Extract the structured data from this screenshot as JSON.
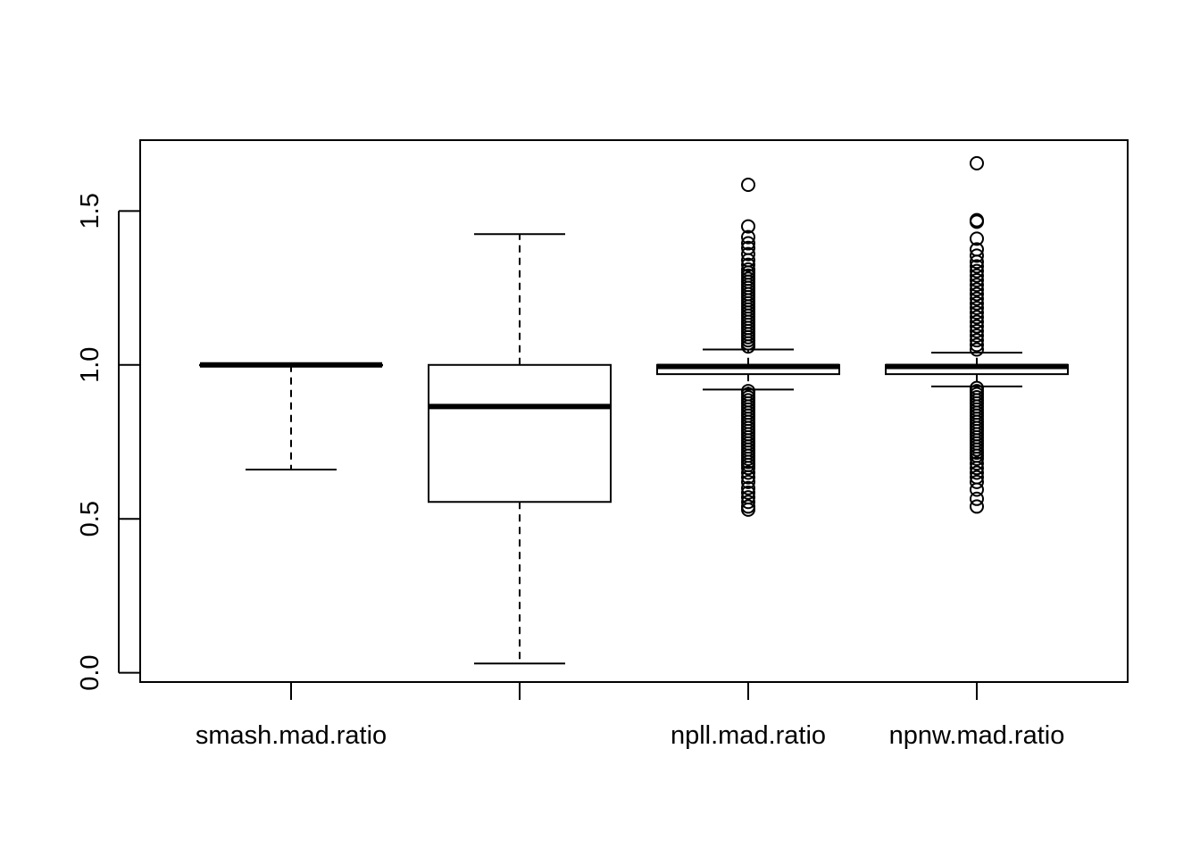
{
  "chart_data": {
    "type": "boxplot",
    "title": "",
    "xlabel": "",
    "ylabel": "",
    "ylim": [
      -0.03,
      1.73
    ],
    "y_ticks": [
      0.0,
      0.5,
      1.0,
      1.5
    ],
    "y_tick_labels": [
      "0.0",
      "0.5",
      "1.0",
      "1.5"
    ],
    "categories": [
      "smash.mad.ratio",
      "",
      "npll.mad.ratio",
      "npnw.mad.ratio"
    ],
    "series": [
      {
        "label": "smash.mad.ratio",
        "whisker_low": 0.66,
        "q1": 1.0,
        "median": 1.0,
        "q3": 1.0,
        "whisker_high": 1.0,
        "outliers": []
      },
      {
        "label": "",
        "whisker_low": 0.03,
        "q1": 0.555,
        "median": 0.865,
        "q3": 1.0,
        "whisker_high": 1.425,
        "outliers": []
      },
      {
        "label": "npll.mad.ratio",
        "whisker_low": 0.92,
        "q1": 0.97,
        "median": 0.995,
        "q3": 1.0,
        "whisker_high": 1.05,
        "outliers": [
          1.585,
          1.45,
          1.415,
          1.395,
          1.38,
          1.36,
          1.34,
          1.325,
          1.31,
          1.3,
          1.29,
          1.28,
          1.27,
          1.26,
          1.25,
          1.24,
          1.23,
          1.22,
          1.21,
          1.2,
          1.19,
          1.18,
          1.17,
          1.16,
          1.15,
          1.14,
          1.13,
          1.12,
          1.11,
          1.1,
          1.09,
          1.08,
          1.07,
          1.06,
          0.915,
          0.905,
          0.895,
          0.885,
          0.875,
          0.865,
          0.855,
          0.845,
          0.835,
          0.825,
          0.815,
          0.805,
          0.795,
          0.785,
          0.775,
          0.765,
          0.755,
          0.745,
          0.735,
          0.725,
          0.715,
          0.705,
          0.695,
          0.685,
          0.675,
          0.665,
          0.65,
          0.635,
          0.62,
          0.6,
          0.585,
          0.57,
          0.555,
          0.54,
          0.53
        ]
      },
      {
        "label": "npnw.mad.ratio",
        "whisker_low": 0.93,
        "q1": 0.97,
        "median": 0.995,
        "q3": 1.0,
        "whisker_high": 1.04,
        "outliers": [
          1.655,
          1.47,
          1.465,
          1.41,
          1.375,
          1.355,
          1.335,
          1.32,
          1.305,
          1.29,
          1.275,
          1.26,
          1.245,
          1.23,
          1.215,
          1.2,
          1.185,
          1.17,
          1.155,
          1.14,
          1.125,
          1.11,
          1.095,
          1.08,
          1.065,
          1.05,
          0.925,
          0.915,
          0.905,
          0.895,
          0.885,
          0.875,
          0.865,
          0.855,
          0.845,
          0.835,
          0.825,
          0.815,
          0.805,
          0.795,
          0.785,
          0.775,
          0.765,
          0.755,
          0.745,
          0.735,
          0.725,
          0.715,
          0.705,
          0.695,
          0.68,
          0.665,
          0.65,
          0.635,
          0.62,
          0.595,
          0.565,
          0.54
        ]
      }
    ]
  }
}
